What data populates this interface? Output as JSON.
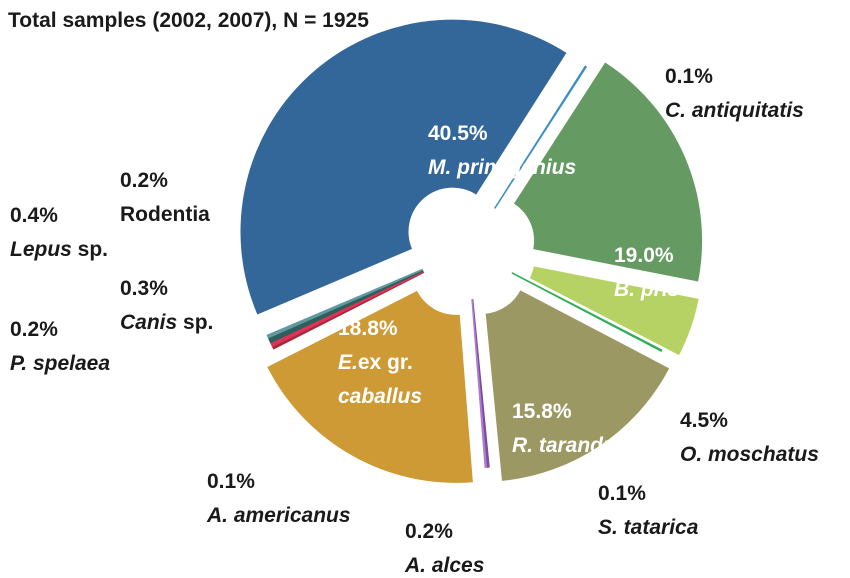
{
  "chart_data": {
    "type": "pie",
    "title": "Total samples (2002, 2007), N = 1925",
    "variant": "exploded-donut",
    "series": [
      {
        "name": "M. primigenius",
        "value": 40.5,
        "label": "40.5%",
        "name_parts": [
          {
            "text": "M. primigenius",
            "italic": true
          }
        ],
        "color": "#336699",
        "label_inside": true
      },
      {
        "name": "C. antiquitatis",
        "value": 0.1,
        "label": "0.1%",
        "name_parts": [
          {
            "text": "C. antiquitatis",
            "italic": true
          }
        ],
        "color": "#3d8fc2",
        "label_inside": false
      },
      {
        "name": "B. priscus",
        "value": 19.0,
        "label": "19.0%",
        "name_parts": [
          {
            "text": "B. priscus",
            "italic": true
          }
        ],
        "color": "#659a62",
        "label_inside": true
      },
      {
        "name": "O. moschatus",
        "value": 4.5,
        "label": "4.5%",
        "name_parts": [
          {
            "text": "O. moschatus",
            "italic": true
          }
        ],
        "color": "#b6d265",
        "label_inside": false
      },
      {
        "name": "S. tatarica",
        "value": 0.1,
        "label": "0.1%",
        "name_parts": [
          {
            "text": "S. tatarica",
            "italic": true
          }
        ],
        "color": "#2fae57",
        "label_inside": false
      },
      {
        "name": "R. tarandus",
        "value": 15.8,
        "label": "15.8%",
        "name_parts": [
          {
            "text": "R. tarandus",
            "italic": true
          }
        ],
        "color": "#9c9864",
        "label_inside": true
      },
      {
        "name": "A. alces",
        "value": 0.2,
        "label": "0.2%",
        "name_parts": [
          {
            "text": "A. alces",
            "italic": true
          }
        ],
        "color": "#7a4d9a",
        "label_inside": false
      },
      {
        "name": "A. americanus",
        "value": 0.1,
        "label": "0.1%",
        "name_parts": [
          {
            "text": "A. americanus",
            "italic": true
          }
        ],
        "color": "#b07ad0",
        "label_inside": false
      },
      {
        "name": "E.ex gr. caballus",
        "value": 18.8,
        "label": "18.8%",
        "name_parts": [
          {
            "text": "E.",
            "italic": true
          },
          {
            "text": "ex gr.",
            "italic": false
          },
          {
            "text": " caballus",
            "italic": true
          }
        ],
        "color": "#ce9a35",
        "label_inside": true
      },
      {
        "name": "P. spelaea",
        "value": 0.2,
        "label": "0.2%",
        "name_parts": [
          {
            "text": "P. spelaea",
            "italic": true
          }
        ],
        "color": "#a6283a",
        "label_inside": false
      },
      {
        "name": "Canis sp.",
        "value": 0.3,
        "label": "0.3%",
        "name_parts": [
          {
            "text": "Canis",
            "italic": true
          },
          {
            "text": " sp.",
            "italic": false
          }
        ],
        "color": "#e0335a",
        "label_inside": false
      },
      {
        "name": "Lepus sp.",
        "value": 0.4,
        "label": "0.4%",
        "name_parts": [
          {
            "text": "Lepus",
            "italic": true
          },
          {
            "text": " sp.",
            "italic": false
          }
        ],
        "color": "#2f5f5a",
        "label_inside": false
      },
      {
        "name": "Rodentia",
        "value": 0.2,
        "label": "0.2%",
        "name_parts": [
          {
            "text": "Rodentia",
            "italic": false
          }
        ],
        "color": "#5f9aa0",
        "label_inside": false
      }
    ]
  }
}
